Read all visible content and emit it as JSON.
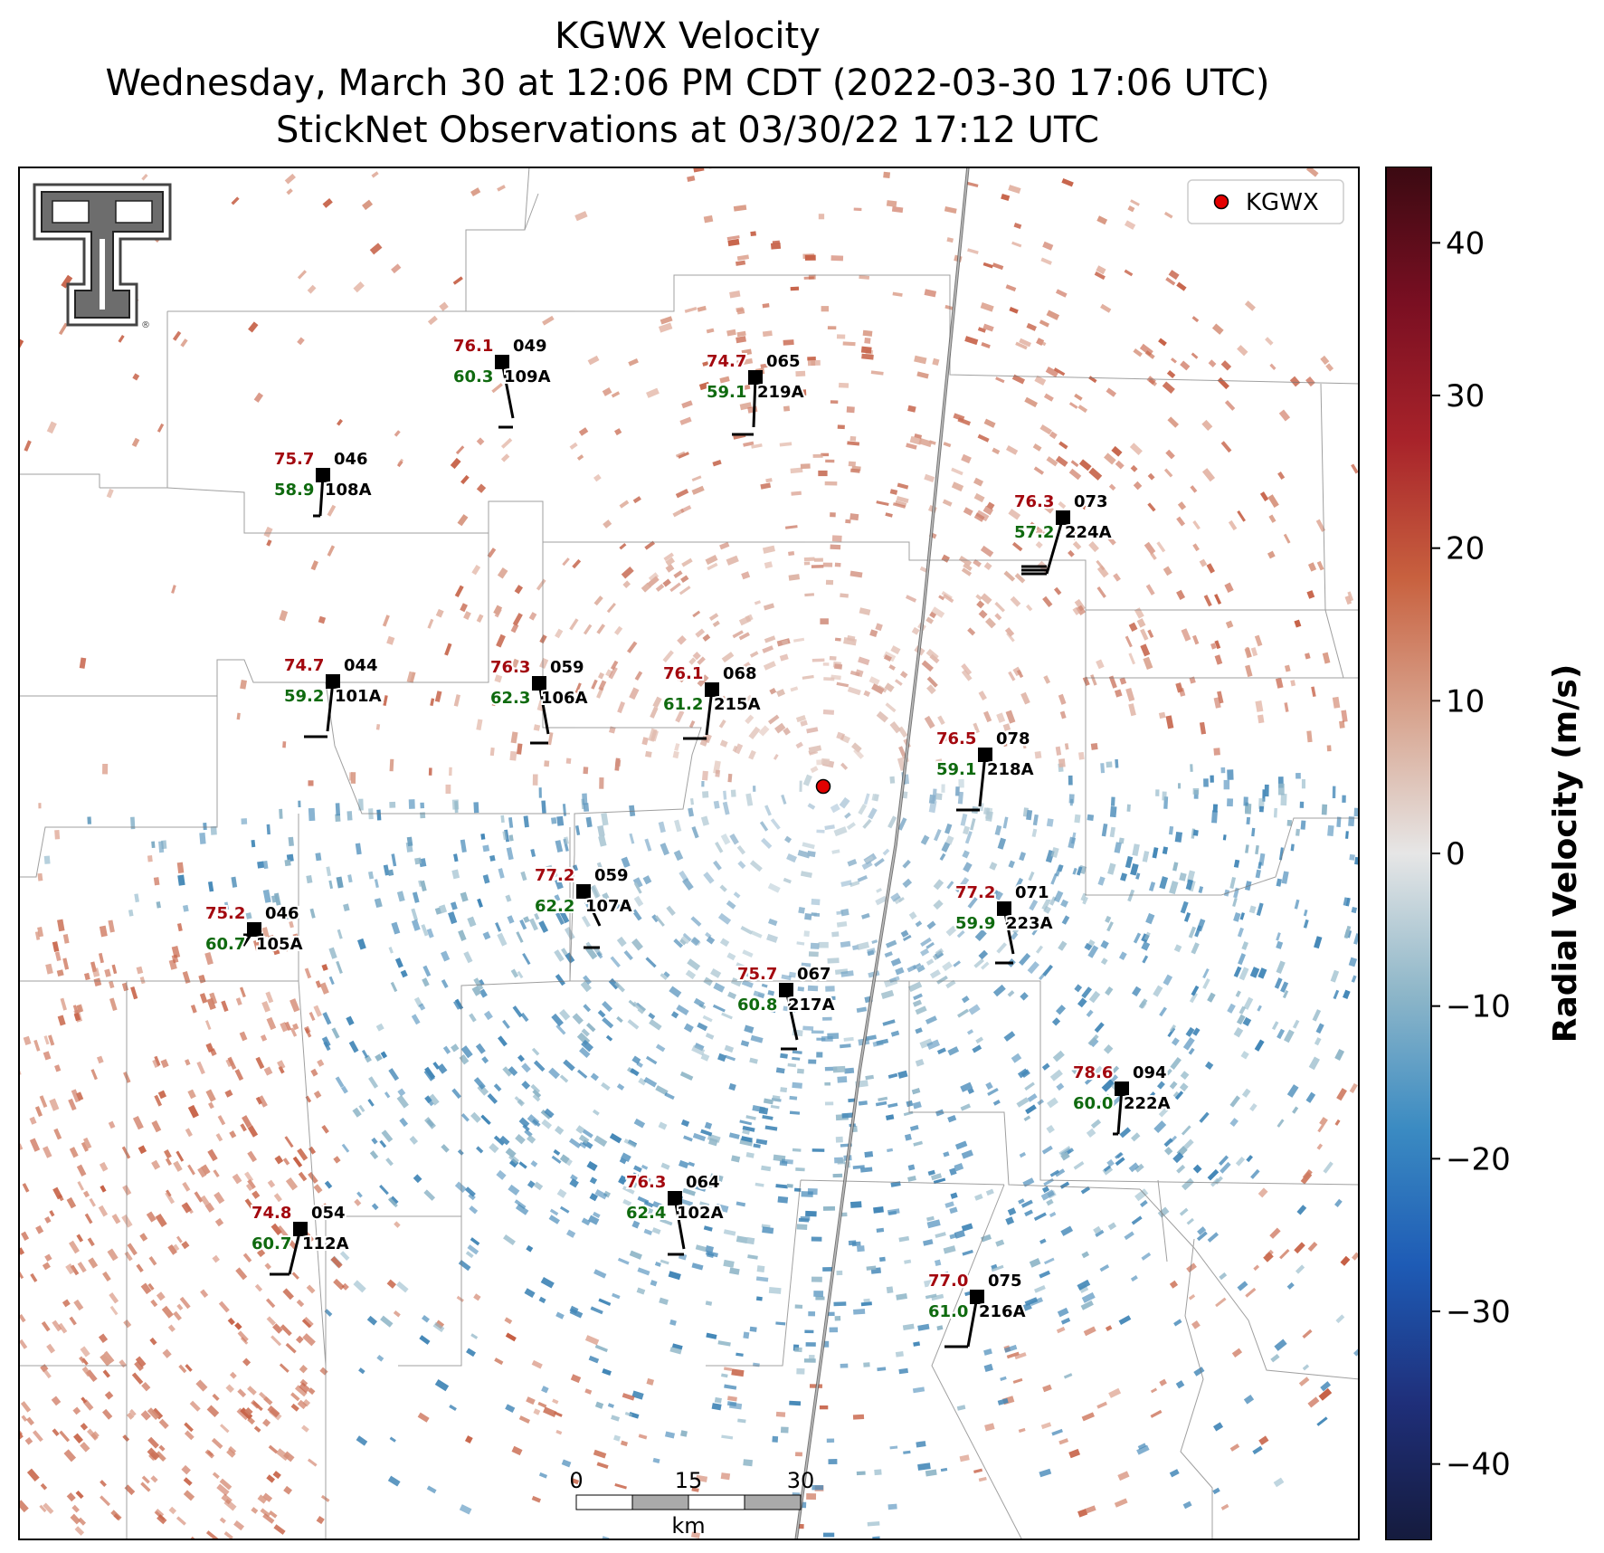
{
  "title": {
    "line1": "KGWX Velocity",
    "line2": "Wednesday, March 30 at 12:06 PM CDT (2022-03-30 17:06 UTC)",
    "line3": "StickNet Observations at 03/30/22 17:12 UTC"
  },
  "legend": {
    "label": "KGWX",
    "marker_color": "#e30000"
  },
  "logo": {
    "text": "TT",
    "mark": "®"
  },
  "colorbar": {
    "label": "Radial Velocity (m/s)",
    "range": [
      -45,
      45
    ],
    "ticks": [
      40,
      30,
      20,
      10,
      0,
      -10,
      -20,
      -30,
      -40
    ],
    "tick_labels": [
      "40",
      "30",
      "20",
      "10",
      "0",
      "−10",
      "−20",
      "−30",
      "−40"
    ],
    "colors": [
      "#151b3d",
      "#1f2f7a",
      "#1e5bb5",
      "#3b8bc2",
      "#8fb7c9",
      "#e6e6e6",
      "#d8a590",
      "#c8613f",
      "#a8232a",
      "#7a0f22",
      "#3b0a12"
    ]
  },
  "scalebar": {
    "labels": [
      "0",
      "15",
      "30"
    ],
    "unit": "km"
  },
  "stations": [
    {
      "id": "109A",
      "temp": "76.1",
      "dew": "60.3",
      "dir": "049"
    },
    {
      "id": "219A",
      "temp": "74.7",
      "dew": "59.1",
      "dir": "065"
    },
    {
      "id": "108A",
      "temp": "75.7",
      "dew": "58.9",
      "dir": "046"
    },
    {
      "id": "224A",
      "temp": "76.3",
      "dew": "57.2",
      "dir": "073"
    },
    {
      "id": "101A",
      "temp": "74.7",
      "dew": "59.2",
      "dir": "044"
    },
    {
      "id": "106A",
      "temp": "76.3",
      "dew": "62.3",
      "dir": "059"
    },
    {
      "id": "215A",
      "temp": "76.1",
      "dew": "61.2",
      "dir": "068"
    },
    {
      "id": "218A",
      "temp": "76.5",
      "dew": "59.1",
      "dir": "078"
    },
    {
      "id": "107A",
      "temp": "77.2",
      "dew": "62.2",
      "dir": "059"
    },
    {
      "id": "105A",
      "temp": "75.2",
      "dew": "60.7",
      "dir": "046"
    },
    {
      "id": "223A",
      "temp": "77.2",
      "dew": "59.9",
      "dir": "071"
    },
    {
      "id": "217A",
      "temp": "75.7",
      "dew": "60.8",
      "dir": "067"
    },
    {
      "id": "222A",
      "temp": "78.6",
      "dew": "60.0",
      "dir": "094"
    },
    {
      "id": "102A",
      "temp": "76.3",
      "dew": "62.4",
      "dir": "064"
    },
    {
      "id": "112A",
      "temp": "74.8",
      "dew": "60.7",
      "dir": "054"
    },
    {
      "id": "216A",
      "temp": "77.0",
      "dew": "61.0",
      "dir": "075"
    }
  ]
}
